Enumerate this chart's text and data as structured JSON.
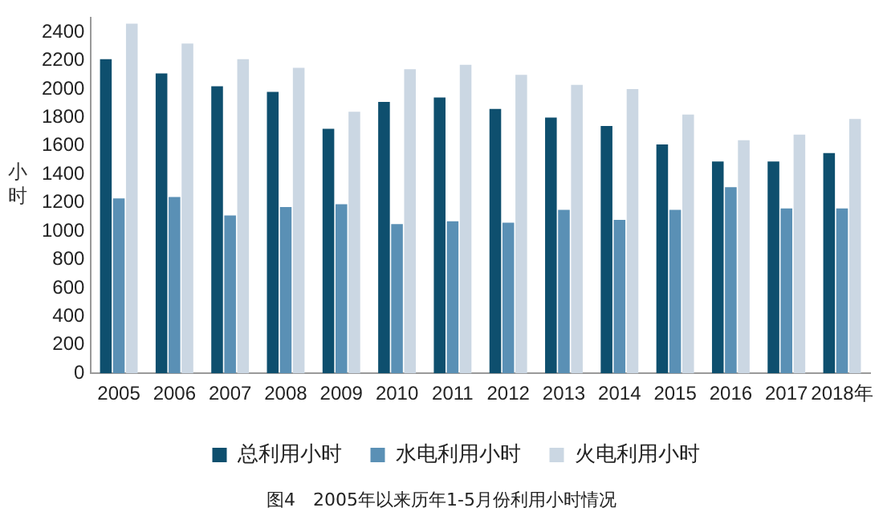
{
  "chart_data": {
    "type": "bar",
    "ylabel": "小时",
    "categories": [
      "2005",
      "2006",
      "2007",
      "2008",
      "2009",
      "2010",
      "2011",
      "2012",
      "2013",
      "2014",
      "2015",
      "2016",
      "2017",
      "2018年"
    ],
    "series": [
      {
        "name": "总利用小时",
        "color": "#0e4f6e",
        "values": [
          2210,
          2110,
          2020,
          1980,
          1720,
          1910,
          1940,
          1860,
          1800,
          1740,
          1610,
          1490,
          1490,
          1550
        ]
      },
      {
        "name": "水电利用小时",
        "color": "#5a90b5",
        "values": [
          1230,
          1240,
          1110,
          1170,
          1190,
          1050,
          1070,
          1060,
          1150,
          1080,
          1150,
          1310,
          1160,
          1160
        ]
      },
      {
        "name": "火电利用小时",
        "color": "#cbd7e3",
        "values": [
          2460,
          2320,
          2210,
          2150,
          1840,
          2140,
          2170,
          2100,
          2030,
          2000,
          1820,
          1640,
          1680,
          1790
        ]
      }
    ],
    "ylim": [
      0,
      2500
    ],
    "yticks": [
      0,
      200,
      400,
      600,
      800,
      1000,
      1200,
      1400,
      1600,
      1800,
      2000,
      2200,
      2400
    ],
    "grid": false,
    "legend": "bottom",
    "annotations": [
      "图4　2005年以来历年1-5月份利用小时情况"
    ]
  }
}
